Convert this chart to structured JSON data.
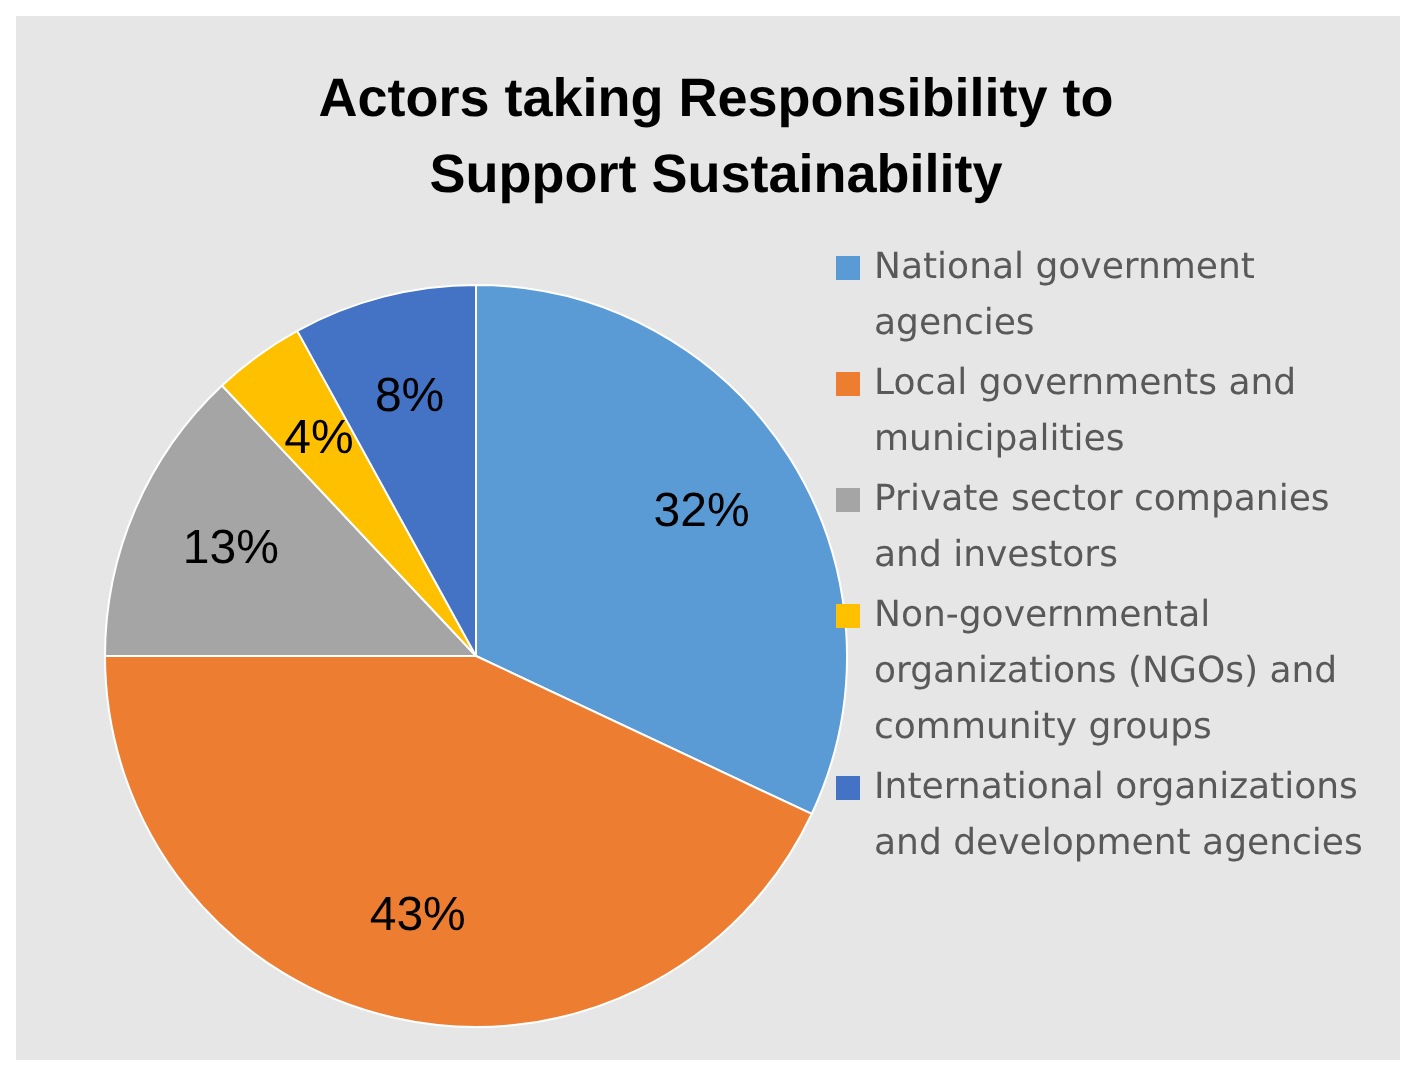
{
  "chart_data": {
    "type": "pie",
    "title": "Actors taking Responsibility to Support Sustainability",
    "categories": [
      "National government agencies",
      "Local governments and municipalities",
      "Private sector companies and investors",
      "Non-governmental organizations (NGOs) and community groups",
      "International organizations and development agencies"
    ],
    "values": [
      32,
      43,
      13,
      4,
      8
    ],
    "colors": [
      "#5b9bd5",
      "#ed7d31",
      "#a5a5a5",
      "#ffc000",
      "#4472c4"
    ],
    "value_labels": [
      "32%",
      "43%",
      "13%",
      "4%",
      "8%"
    ],
    "legend": "right"
  }
}
